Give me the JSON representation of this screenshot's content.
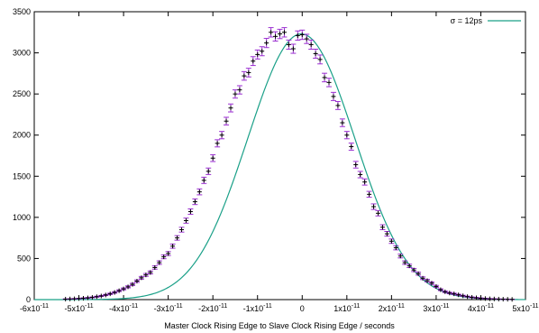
{
  "chart_data": {
    "type": "scatter",
    "title": "",
    "xlabel": "Master Clock Rising Edge to Slave Clock Rising Edge / seconds",
    "ylabel": "",
    "xlim": [
      -6e-11,
      5e-11
    ],
    "ylim": [
      0,
      3500
    ],
    "grid": false,
    "legend_position": "top-right",
    "x_ticks": [
      {
        "value": -6e-11,
        "mant": "-6x10",
        "exp": "-11"
      },
      {
        "value": -5e-11,
        "mant": "-5x10",
        "exp": "-11"
      },
      {
        "value": -4e-11,
        "mant": "-4x10",
        "exp": "-11"
      },
      {
        "value": -3e-11,
        "mant": "-3x10",
        "exp": "-11"
      },
      {
        "value": -2e-11,
        "mant": "-2x10",
        "exp": "-11"
      },
      {
        "value": -1e-11,
        "mant": "-1x10",
        "exp": "-11"
      },
      {
        "value": 0,
        "mant": "0",
        "exp": ""
      },
      {
        "value": 1e-11,
        "mant": "1x10",
        "exp": "-11"
      },
      {
        "value": 2e-11,
        "mant": "2x10",
        "exp": "-11"
      },
      {
        "value": 3e-11,
        "mant": "3x10",
        "exp": "-11"
      },
      {
        "value": 4e-11,
        "mant": "4x10",
        "exp": "-11"
      },
      {
        "value": 5e-11,
        "mant": "5x10",
        "exp": "-11"
      }
    ],
    "y_ticks": [
      0,
      500,
      1000,
      1500,
      2000,
      2500,
      3000,
      3500
    ],
    "series": [
      {
        "name": "σ = 12ps",
        "kind": "line",
        "color": "#1aa088",
        "model": {
          "function": "gaussian",
          "amplitude": 3230,
          "mean": -2e-13,
          "sigma": 1.2e-11
        }
      },
      {
        "kind": "points",
        "color": "#9b2fd1",
        "point_color": "#000000",
        "x": [
          -5.3e-11,
          -5.2e-11,
          -5.1e-11,
          -5e-11,
          -4.9e-11,
          -4.8e-11,
          -4.7e-11,
          -4.6e-11,
          -4.5e-11,
          -4.4e-11,
          -4.3e-11,
          -4.2e-11,
          -4.1e-11,
          -4e-11,
          -3.9e-11,
          -3.8e-11,
          -3.7e-11,
          -3.6e-11,
          -3.5e-11,
          -3.4e-11,
          -3.3e-11,
          -3.2e-11,
          -3.1e-11,
          -3e-11,
          -2.9e-11,
          -2.8e-11,
          -2.7e-11,
          -2.6e-11,
          -2.5e-11,
          -2.4e-11,
          -2.3e-11,
          -2.2e-11,
          -2.1e-11,
          -2e-11,
          -1.9e-11,
          -1.8e-11,
          -1.7e-11,
          -1.6e-11,
          -1.5e-11,
          -1.4e-11,
          -1.3e-11,
          -1.2e-11,
          -1.1e-11,
          -1e-11,
          -9e-12,
          -8e-12,
          -7e-12,
          -6e-12,
          -5e-12,
          -4e-12,
          -3e-12,
          -2e-12,
          -1e-12,
          0.0,
          1e-12,
          2e-12,
          3e-12,
          4e-12,
          5e-12,
          6e-12,
          7e-12,
          8e-12,
          9e-12,
          1e-11,
          1.1e-11,
          1.2e-11,
          1.3e-11,
          1.4e-11,
          1.5e-11,
          1.6e-11,
          1.7e-11,
          1.8e-11,
          1.9e-11,
          2e-11,
          2.1e-11,
          2.2e-11,
          2.3e-11,
          2.4e-11,
          2.5e-11,
          2.6e-11,
          2.7e-11,
          2.8e-11,
          2.9e-11,
          3e-11,
          3.1e-11,
          3.2e-11,
          3.3e-11,
          3.4e-11,
          3.5e-11,
          3.6e-11,
          3.7e-11,
          3.8e-11,
          3.9e-11,
          4e-11,
          4.1e-11,
          4.2e-11,
          4.3e-11,
          4.4e-11,
          4.5e-11,
          4.6e-11,
          4.7e-11
        ],
        "y": [
          6,
          8,
          10,
          13,
          17,
          21,
          27,
          35,
          44,
          56,
          70,
          87,
          108,
          130,
          155,
          185,
          225,
          265,
          300,
          330,
          390,
          450,
          520,
          560,
          650,
          750,
          850,
          960,
          1070,
          1190,
          1310,
          1450,
          1560,
          1720,
          1900,
          2000,
          2170,
          2330,
          2500,
          2550,
          2720,
          2760,
          2900,
          2980,
          3020,
          3120,
          3250,
          3200,
          3230,
          3250,
          3100,
          3050,
          3210,
          3220,
          3170,
          3100,
          2990,
          2920,
          2700,
          2640,
          2470,
          2360,
          2150,
          2000,
          1860,
          1640,
          1520,
          1430,
          1280,
          1130,
          1050,
          880,
          800,
          710,
          630,
          530,
          450,
          410,
          360,
          315,
          260,
          230,
          200,
          160,
          120,
          95,
          80,
          70,
          58,
          46,
          36,
          28,
          22,
          17,
          13,
          10,
          8,
          6,
          5,
          4,
          3
        ]
      }
    ]
  }
}
